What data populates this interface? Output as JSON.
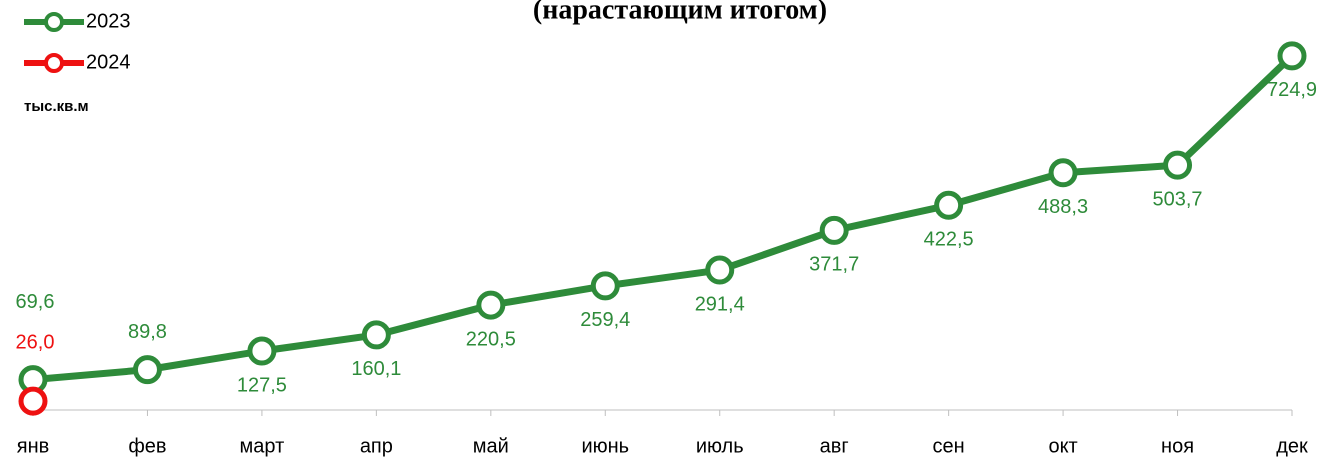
{
  "chart_data": {
    "type": "line",
    "title": "(нарастающим итогом)",
    "y_label": "тыс.кв.м",
    "categories": [
      "янв",
      "фев",
      "март",
      "апр",
      "май",
      "июнь",
      "июль",
      "авг",
      "сен",
      "окт",
      "ноя",
      "дек"
    ],
    "series": [
      {
        "name": "2023",
        "color": "#2e8b3a",
        "values": [
          69.6,
          89.8,
          127.5,
          160.1,
          220.5,
          259.4,
          291.4,
          371.7,
          422.5,
          488.3,
          503.7,
          724.9
        ],
        "value_labels": [
          "69,6",
          "89,8",
          "127,5",
          "160,1",
          "220,5",
          "259,4",
          "291,4",
          "371,7",
          "422,5",
          "488,3",
          "503,7",
          "724,9"
        ]
      },
      {
        "name": "2024",
        "color": "#ee1111",
        "values": [
          26.0,
          null,
          null,
          null,
          null,
          null,
          null,
          null,
          null,
          null,
          null,
          null
        ],
        "value_labels": [
          "26,0",
          null,
          null,
          null,
          null,
          null,
          null,
          null,
          null,
          null,
          null,
          null
        ]
      }
    ],
    "ylim": [
      0,
      838
    ]
  }
}
